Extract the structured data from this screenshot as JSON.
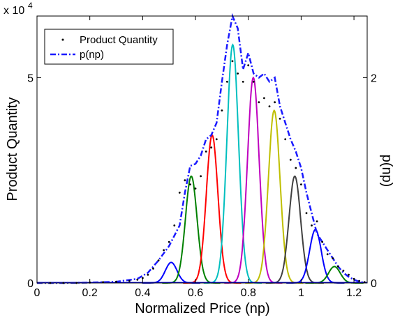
{
  "chart_data": {
    "type": "line",
    "title": "",
    "xlabel": "Normalized  Price (np)",
    "ylabel": "Product Quantity",
    "ylabel_right": "p(np)",
    "xlim": [
      0,
      1.25
    ],
    "ylim": [
      0,
      6.5
    ],
    "y_exponent_label": "x 10",
    "y_exponent_power": "4",
    "ylim_right": [
      0,
      2.6
    ],
    "xticks": [
      0,
      0.2,
      0.4,
      0.6,
      0.8,
      1,
      1.2
    ],
    "xtick_labels": [
      "0",
      "0.2",
      "0.4",
      "0.6",
      "0.8",
      "1",
      "1.2"
    ],
    "yticks": [
      0,
      5
    ],
    "ytick_labels": [
      "0",
      "5"
    ],
    "yticks_right": [
      0,
      2
    ],
    "ytick_labels_right": [
      "0",
      "2"
    ],
    "grid": false,
    "legend_position": "top-left",
    "series": [
      {
        "name": "Product Quantity",
        "style": "dots",
        "color": "#000000",
        "x": [
          0.05,
          0.1,
          0.15,
          0.2,
          0.25,
          0.3,
          0.35,
          0.38,
          0.4,
          0.42,
          0.44,
          0.46,
          0.48,
          0.5,
          0.52,
          0.54,
          0.56,
          0.58,
          0.6,
          0.62,
          0.64,
          0.66,
          0.68,
          0.7,
          0.72,
          0.74,
          0.76,
          0.78,
          0.8,
          0.82,
          0.84,
          0.86,
          0.88,
          0.9,
          0.92,
          0.94,
          0.96,
          0.98,
          1.0,
          1.02,
          1.04,
          1.06,
          1.08,
          1.1,
          1.12,
          1.14,
          1.16,
          1.18,
          1.2,
          1.22,
          1.24
        ],
        "y": [
          0.0,
          0.0,
          0.0,
          0.01,
          0.02,
          0.03,
          0.05,
          0.08,
          0.12,
          0.2,
          0.35,
          0.55,
          0.8,
          1.0,
          1.4,
          2.2,
          2.5,
          2.4,
          2.3,
          2.6,
          3.2,
          3.3,
          3.5,
          4.2,
          4.9,
          5.4,
          5.1,
          4.9,
          5.3,
          4.9,
          4.4,
          4.5,
          4.3,
          4.4,
          4.0,
          3.5,
          3.0,
          2.8,
          2.4,
          1.7,
          1.4,
          1.5,
          1.0,
          0.7,
          0.6,
          0.4,
          0.3,
          0.2,
          0.1,
          0.05,
          0.02
        ]
      },
      {
        "name": "p(np)",
        "style": "dash-dot",
        "color": "#1a1aff",
        "x": [
          0,
          0.1,
          0.2,
          0.3,
          0.38,
          0.42,
          0.46,
          0.5,
          0.54,
          0.56,
          0.58,
          0.6,
          0.62,
          0.64,
          0.66,
          0.68,
          0.7,
          0.72,
          0.74,
          0.76,
          0.78,
          0.8,
          0.82,
          0.84,
          0.86,
          0.88,
          0.9,
          0.92,
          0.94,
          0.96,
          0.98,
          1.0,
          1.02,
          1.04,
          1.06,
          1.08,
          1.1,
          1.12,
          1.14,
          1.16,
          1.18,
          1.2,
          1.22,
          1.24
        ],
        "y": [
          0.0,
          0.0,
          0.01,
          0.03,
          0.1,
          0.25,
          0.55,
          0.9,
          1.4,
          2.2,
          2.85,
          2.9,
          3.1,
          3.5,
          3.6,
          3.9,
          4.9,
          5.8,
          6.5,
          6.2,
          5.2,
          5.6,
          5.1,
          5.0,
          5.1,
          4.9,
          5.0,
          4.3,
          3.9,
          3.5,
          3.2,
          2.8,
          2.2,
          1.7,
          1.2,
          1.0,
          0.8,
          0.6,
          0.4,
          0.25,
          0.15,
          0.08,
          0.03,
          0.01
        ]
      }
    ],
    "components": [
      {
        "mu": 0.508,
        "sigma": 0.022,
        "amp": 0.5,
        "color": "#0000ff"
      },
      {
        "mu": 0.584,
        "sigma": 0.022,
        "amp": 2.6,
        "color": "#008000"
      },
      {
        "mu": 0.663,
        "sigma": 0.022,
        "amp": 3.6,
        "color": "#ff0000"
      },
      {
        "mu": 0.741,
        "sigma": 0.022,
        "amp": 5.8,
        "color": "#00bfbf"
      },
      {
        "mu": 0.819,
        "sigma": 0.022,
        "amp": 5.0,
        "color": "#bf00bf"
      },
      {
        "mu": 0.898,
        "sigma": 0.022,
        "amp": 4.2,
        "color": "#bfbf00"
      },
      {
        "mu": 0.976,
        "sigma": 0.022,
        "amp": 2.6,
        "color": "#404040"
      },
      {
        "mu": 1.054,
        "sigma": 0.022,
        "amp": 1.3,
        "color": "#0000ff"
      },
      {
        "mu": 1.126,
        "sigma": 0.022,
        "amp": 0.4,
        "color": "#008000"
      }
    ]
  }
}
